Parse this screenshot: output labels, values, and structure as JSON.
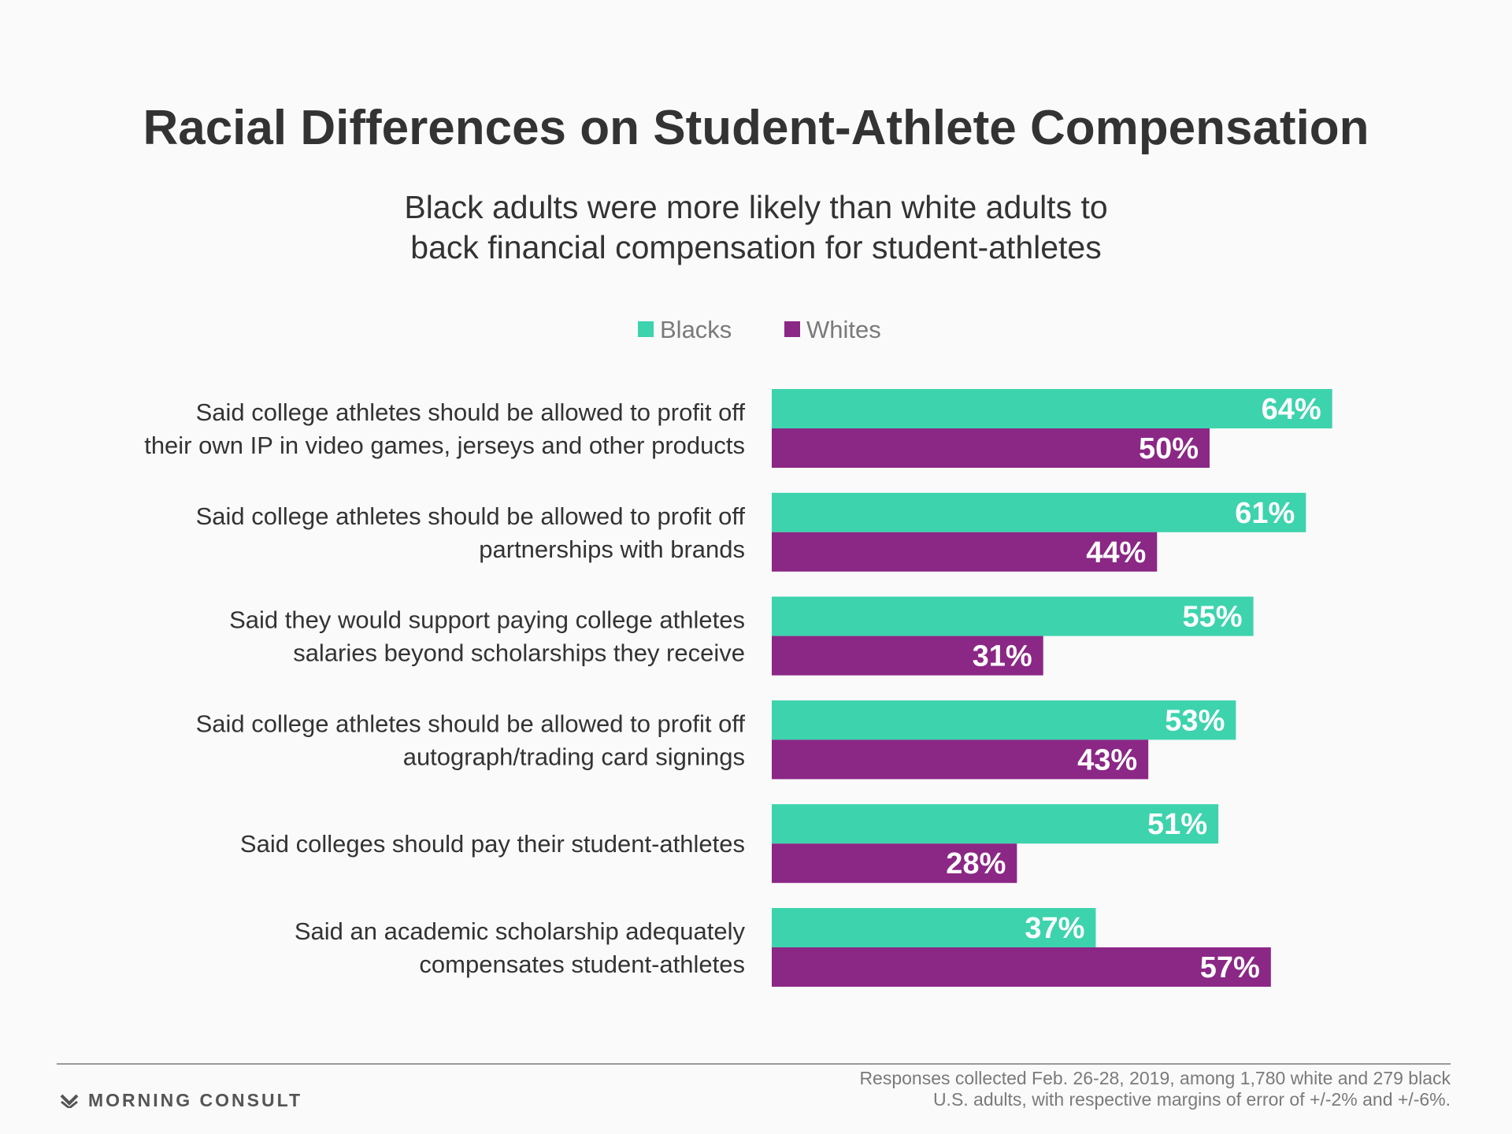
{
  "chart_data": {
    "type": "bar",
    "orientation": "horizontal",
    "title": "Racial Differences on Student-Athlete Compensation",
    "subtitle": [
      "Black adults were more likely than white adults to",
      "back financial compensation for student-athletes"
    ],
    "categories": [
      [
        "Said college athletes should be allowed to profit off",
        "their own IP in video games, jerseys and other products"
      ],
      [
        "Said college athletes should be allowed to profit off",
        "partnerships with brands"
      ],
      [
        "Said they would support paying college athletes",
        "salaries beyond scholarships they receive"
      ],
      [
        "Said college athletes should be allowed to profit off",
        "autograph/trading card signings"
      ],
      [
        "Said colleges should pay their student-athletes"
      ],
      [
        "Said an academic scholarship adequately",
        "compensates student-athletes"
      ]
    ],
    "series": [
      {
        "name": "Blacks",
        "color": "#3dd3ad",
        "values": [
          64,
          61,
          55,
          53,
          51,
          37
        ]
      },
      {
        "name": "Whites",
        "color": "#8b2785",
        "values": [
          50,
          44,
          31,
          43,
          28,
          57
        ]
      }
    ],
    "value_suffix": "%",
    "xlim": [
      0,
      100
    ],
    "grid": false,
    "legend_position": "top-center"
  },
  "footer": {
    "brand": "MORNING CONSULT",
    "note": [
      "Responses collected Feb. 26-28, 2019, among 1,780 white and 279 black",
      "U.S. adults, with respective margins of error of +/-2% and +/-6%."
    ]
  }
}
